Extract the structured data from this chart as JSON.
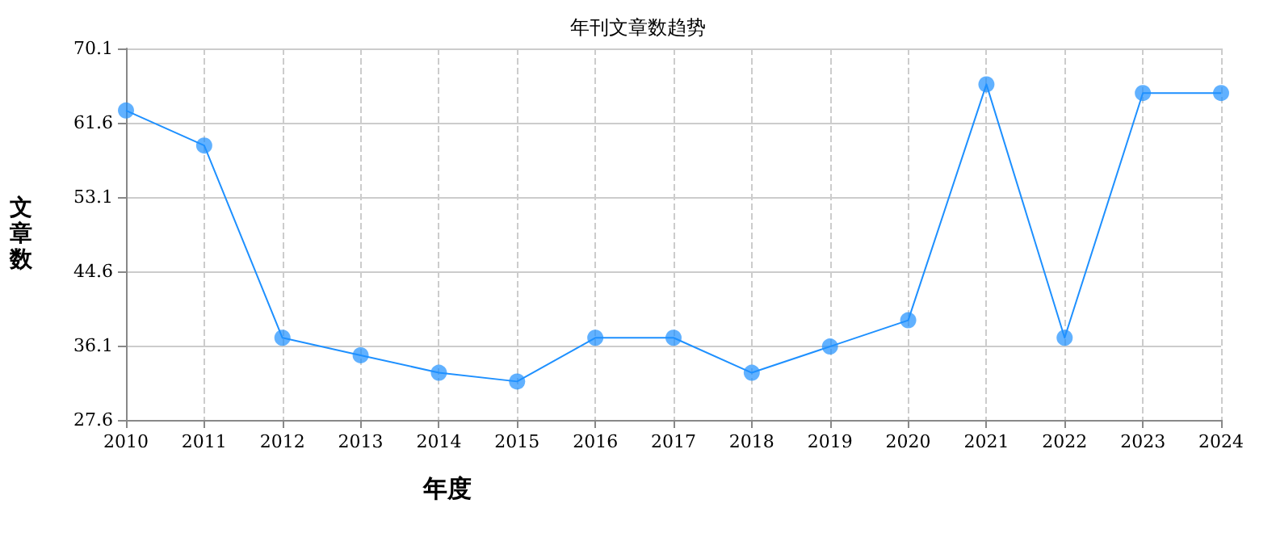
{
  "chart_data": {
    "type": "line",
    "title": "年刊文章数趋势",
    "xlabel": "年度",
    "ylabel": "文章数",
    "categories": [
      "2010",
      "2011",
      "2012",
      "2013",
      "2014",
      "2015",
      "2016",
      "2017",
      "2018",
      "2019",
      "2020",
      "2021",
      "2022",
      "2023",
      "2024"
    ],
    "series": [
      {
        "color": "#1e90ff",
        "values": [
          63,
          59,
          37,
          35,
          33,
          32,
          37,
          37,
          33,
          36,
          39,
          66,
          37,
          65,
          65
        ]
      }
    ],
    "ylim": [
      27.6,
      70.1
    ],
    "yticks": [
      27.6,
      36.1,
      44.6,
      53.1,
      61.6,
      70.1
    ],
    "grid": true,
    "marker": "circle",
    "line_style": "solid"
  }
}
